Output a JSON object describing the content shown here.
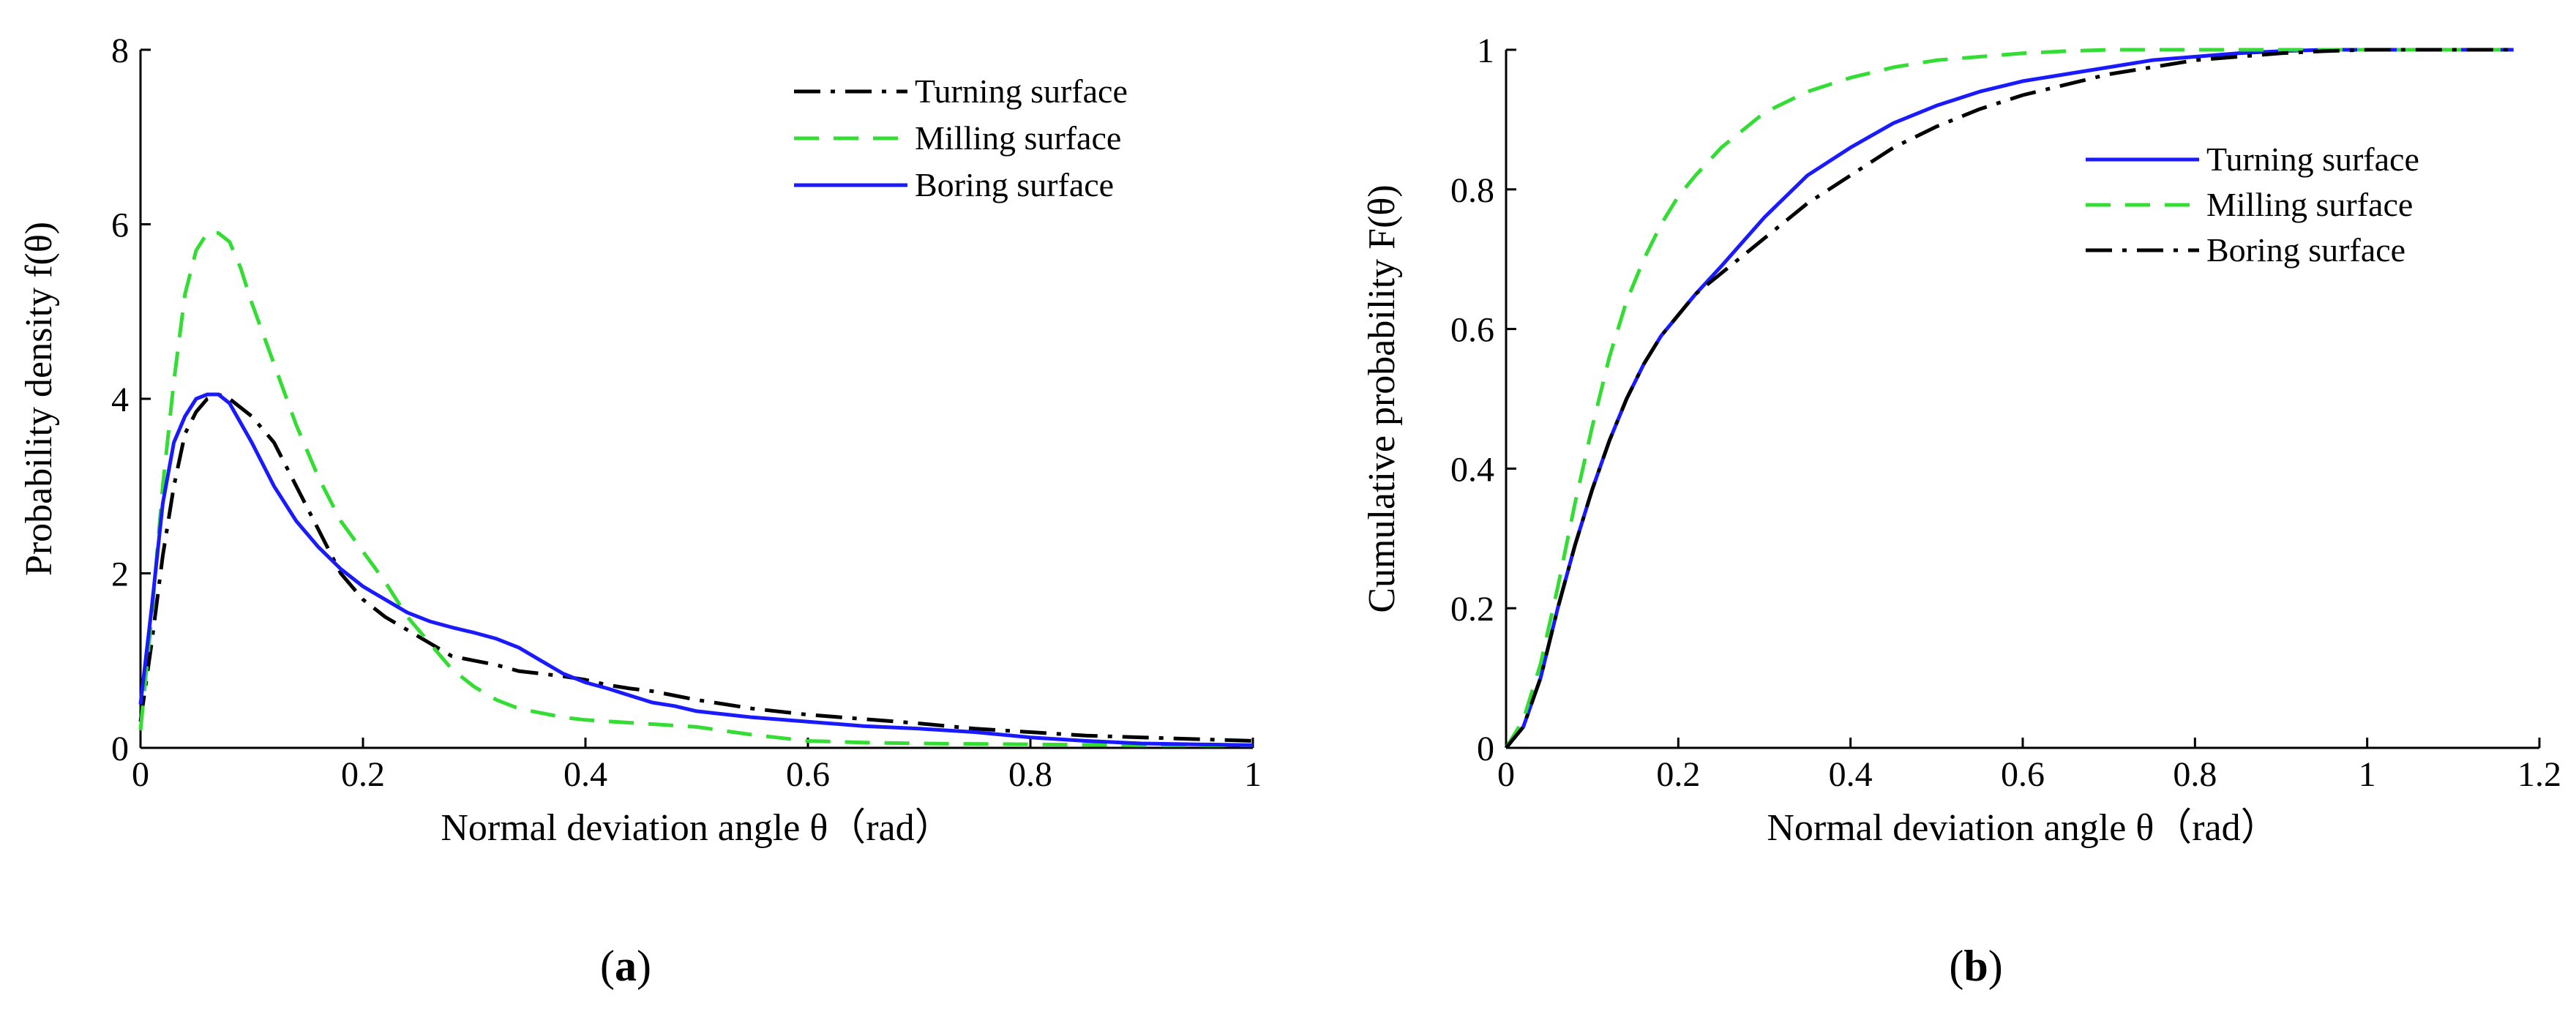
{
  "figure": {
    "panels": [
      {
        "label_open": "(",
        "label_letter": "a",
        "label_close": ")"
      },
      {
        "label_open": "(",
        "label_letter": "b",
        "label_close": ")"
      }
    ]
  },
  "chart_data": [
    {
      "type": "line",
      "title": "",
      "xlabel": "Normal deviation angle θ（rad）",
      "ylabel": "Probability density f(θ)",
      "xlim": [
        0,
        1
      ],
      "ylim": [
        0,
        8
      ],
      "xticks": [
        0,
        0.2,
        0.4,
        0.6,
        0.8,
        1
      ],
      "xtick_labels": [
        "0",
        "0.2",
        "0.4",
        "0.6",
        "0.8",
        "1"
      ],
      "yticks": [
        0,
        2,
        4,
        6,
        8
      ],
      "ytick_labels": [
        "0",
        "2",
        "4",
        "6",
        "8"
      ],
      "legend_position": "top-right",
      "series": [
        {
          "name": "Turning surface",
          "color": "#000000",
          "style": "dashdot",
          "x": [
            0,
            0.01,
            0.02,
            0.03,
            0.04,
            0.05,
            0.06,
            0.07,
            0.08,
            0.1,
            0.12,
            0.14,
            0.16,
            0.18,
            0.2,
            0.22,
            0.24,
            0.26,
            0.28,
            0.3,
            0.32,
            0.34,
            0.36,
            0.38,
            0.4,
            0.42,
            0.44,
            0.46,
            0.48,
            0.5,
            0.55,
            0.6,
            0.65,
            0.7,
            0.75,
            0.8,
            0.85,
            0.9,
            0.95,
            1.0
          ],
          "y": [
            0.3,
            1.2,
            2.2,
            3.0,
            3.6,
            3.85,
            4.0,
            4.05,
            4.0,
            3.8,
            3.5,
            3.0,
            2.5,
            2.0,
            1.7,
            1.5,
            1.35,
            1.2,
            1.05,
            1.0,
            0.95,
            0.88,
            0.85,
            0.82,
            0.78,
            0.72,
            0.68,
            0.65,
            0.6,
            0.55,
            0.45,
            0.38,
            0.33,
            0.28,
            0.22,
            0.18,
            0.14,
            0.12,
            0.1,
            0.08
          ]
        },
        {
          "name": "Milling surface",
          "color": "#33dd33",
          "style": "dashed",
          "x": [
            0,
            0.01,
            0.02,
            0.03,
            0.04,
            0.05,
            0.06,
            0.07,
            0.08,
            0.09,
            0.1,
            0.12,
            0.14,
            0.16,
            0.18,
            0.2,
            0.22,
            0.24,
            0.26,
            0.28,
            0.3,
            0.32,
            0.34,
            0.36,
            0.38,
            0.4,
            0.45,
            0.5,
            0.55,
            0.6,
            0.65,
            0.7,
            0.8,
            0.9,
            1.0
          ],
          "y": [
            0.2,
            1.5,
            3.0,
            4.2,
            5.2,
            5.7,
            5.9,
            5.9,
            5.8,
            5.5,
            5.1,
            4.4,
            3.7,
            3.1,
            2.6,
            2.25,
            1.9,
            1.5,
            1.2,
            0.9,
            0.7,
            0.55,
            0.45,
            0.4,
            0.35,
            0.32,
            0.28,
            0.24,
            0.15,
            0.08,
            0.06,
            0.05,
            0.04,
            0.03,
            0.03
          ]
        },
        {
          "name": "Boring surface",
          "color": "#1a1aff",
          "style": "solid",
          "x": [
            0,
            0.01,
            0.02,
            0.03,
            0.04,
            0.05,
            0.06,
            0.07,
            0.08,
            0.1,
            0.12,
            0.14,
            0.16,
            0.18,
            0.2,
            0.22,
            0.24,
            0.26,
            0.28,
            0.3,
            0.32,
            0.34,
            0.36,
            0.38,
            0.4,
            0.42,
            0.44,
            0.46,
            0.48,
            0.5,
            0.55,
            0.6,
            0.65,
            0.7,
            0.75,
            0.8,
            0.85,
            0.9,
            0.95,
            1.0
          ],
          "y": [
            0.5,
            1.6,
            2.8,
            3.5,
            3.8,
            4.0,
            4.05,
            4.05,
            3.95,
            3.5,
            3.0,
            2.6,
            2.3,
            2.05,
            1.85,
            1.7,
            1.55,
            1.45,
            1.38,
            1.32,
            1.25,
            1.15,
            1.0,
            0.85,
            0.75,
            0.68,
            0.6,
            0.52,
            0.48,
            0.42,
            0.35,
            0.3,
            0.25,
            0.22,
            0.18,
            0.12,
            0.08,
            0.05,
            0.04,
            0.03
          ]
        }
      ]
    },
    {
      "type": "line",
      "title": "",
      "xlabel": "Normal deviation angle θ（rad）",
      "ylabel": "Cumulative probability F(θ)",
      "xlim": [
        0,
        1.2
      ],
      "ylim": [
        0,
        1
      ],
      "xticks": [
        0,
        0.2,
        0.4,
        0.6,
        0.8,
        1,
        1.2
      ],
      "xtick_labels": [
        "0",
        "0.2",
        "0.4",
        "0.6",
        "0.8",
        "1",
        "1.2"
      ],
      "yticks": [
        0,
        0.2,
        0.4,
        0.6,
        0.8,
        1
      ],
      "ytick_labels": [
        "0",
        "0.2",
        "0.4",
        "0.6",
        "0.8",
        "1"
      ],
      "legend_position": "top-right",
      "series": [
        {
          "name": "Turning surface",
          "color": "#1a1aff",
          "style": "solid",
          "x": [
            0,
            0.02,
            0.04,
            0.06,
            0.08,
            0.1,
            0.12,
            0.14,
            0.16,
            0.18,
            0.2,
            0.22,
            0.25,
            0.3,
            0.35,
            0.4,
            0.45,
            0.5,
            0.55,
            0.6,
            0.65,
            0.7,
            0.75,
            0.8,
            0.85,
            0.9,
            0.95,
            1.0,
            1.1,
            1.17
          ],
          "y": [
            0,
            0.03,
            0.1,
            0.2,
            0.29,
            0.37,
            0.44,
            0.5,
            0.55,
            0.59,
            0.62,
            0.65,
            0.69,
            0.76,
            0.82,
            0.86,
            0.895,
            0.92,
            0.94,
            0.955,
            0.965,
            0.975,
            0.985,
            0.99,
            0.995,
            0.998,
            1.0,
            1.0,
            1.0,
            1.0
          ]
        },
        {
          "name": "Milling surface",
          "color": "#33dd33",
          "style": "dashed",
          "x": [
            0,
            0.02,
            0.04,
            0.06,
            0.08,
            0.1,
            0.12,
            0.14,
            0.16,
            0.18,
            0.2,
            0.22,
            0.25,
            0.3,
            0.35,
            0.4,
            0.45,
            0.5,
            0.55,
            0.6,
            0.65,
            0.7,
            0.75,
            0.8,
            0.9,
            1.0,
            1.1,
            1.17
          ],
          "y": [
            0,
            0.04,
            0.12,
            0.23,
            0.35,
            0.46,
            0.56,
            0.64,
            0.7,
            0.75,
            0.79,
            0.82,
            0.86,
            0.91,
            0.94,
            0.96,
            0.975,
            0.985,
            0.99,
            0.995,
            0.998,
            1.0,
            1.0,
            1.0,
            1.0,
            1.0,
            1.0,
            1.0
          ]
        },
        {
          "name": "Boring surface",
          "color": "#000000",
          "style": "dashdot",
          "x": [
            0,
            0.02,
            0.04,
            0.06,
            0.08,
            0.1,
            0.12,
            0.14,
            0.16,
            0.18,
            0.2,
            0.22,
            0.25,
            0.3,
            0.35,
            0.4,
            0.45,
            0.5,
            0.55,
            0.6,
            0.65,
            0.7,
            0.75,
            0.8,
            0.85,
            0.9,
            0.95,
            1.0,
            1.1,
            1.17
          ],
          "y": [
            0,
            0.03,
            0.1,
            0.2,
            0.29,
            0.37,
            0.44,
            0.5,
            0.55,
            0.59,
            0.62,
            0.65,
            0.68,
            0.73,
            0.78,
            0.82,
            0.86,
            0.89,
            0.915,
            0.935,
            0.95,
            0.965,
            0.975,
            0.985,
            0.99,
            0.995,
            0.998,
            1.0,
            1.0,
            1.0
          ]
        }
      ]
    }
  ]
}
